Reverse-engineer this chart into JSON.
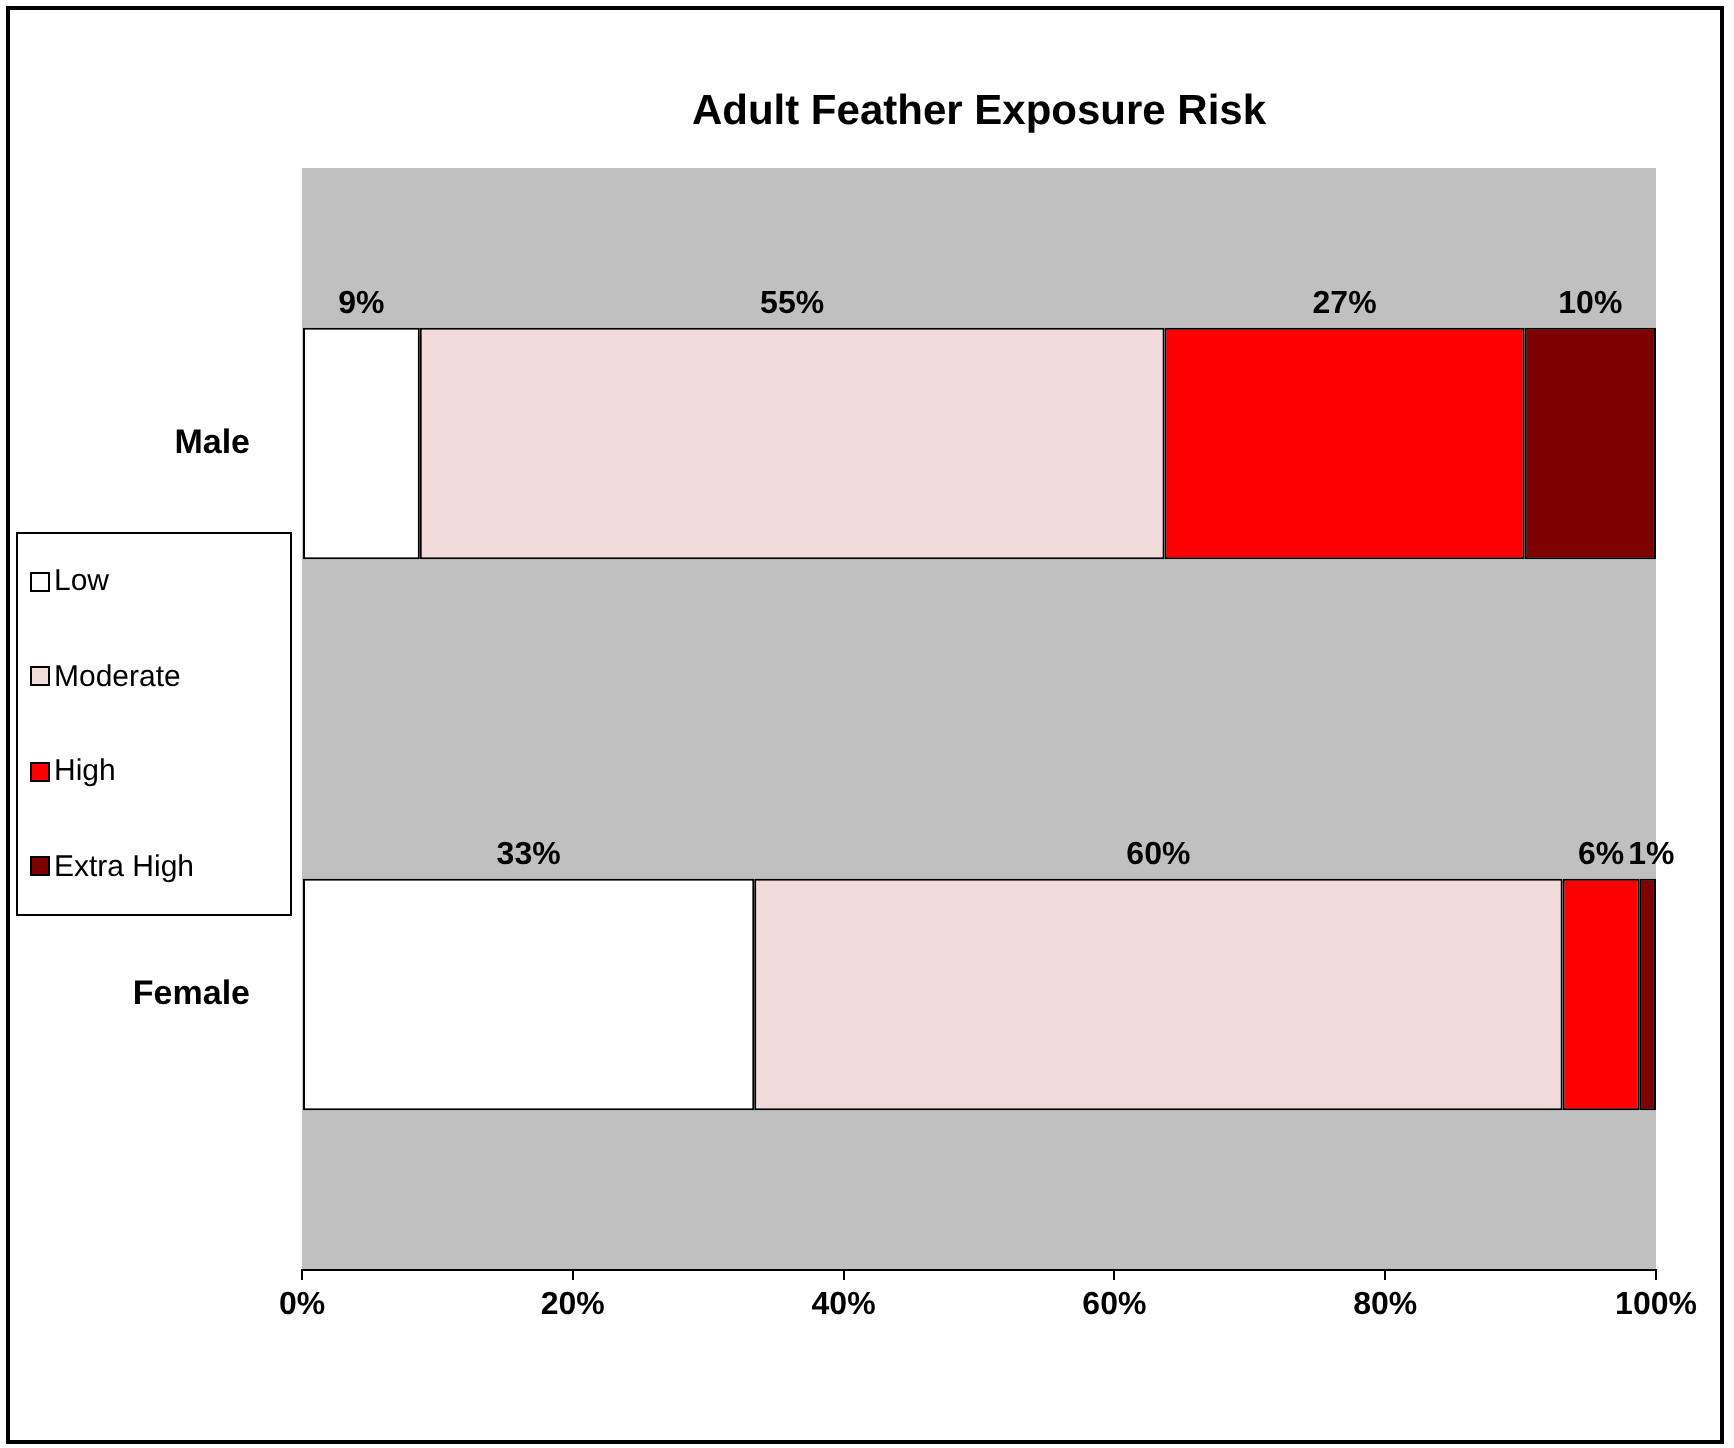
{
  "chart_data": {
    "type": "bar",
    "orientation": "horizontal",
    "stacked": true,
    "title": "Adult Feather Exposure Risk",
    "categories": [
      "Male",
      "Female"
    ],
    "series": [
      {
        "name": "Low",
        "color": "#ffffff",
        "values": [
          8.7,
          33.4
        ],
        "value_labels": [
          "9%",
          "33%"
        ]
      },
      {
        "name": "Moderate",
        "color": "#f2dcdb",
        "values": [
          55.0,
          59.7
        ],
        "value_labels": [
          "55%",
          "60%"
        ]
      },
      {
        "name": "High",
        "color": "#ff0000",
        "values": [
          26.6,
          5.7
        ],
        "value_labels": [
          "27%",
          "6%"
        ]
      },
      {
        "name": "Extra High",
        "color": "#7f0000",
        "values": [
          9.7,
          1.2
        ],
        "value_labels": [
          "10%",
          "1%"
        ]
      }
    ],
    "xlim": [
      0,
      100
    ],
    "xticks": [
      {
        "value": 0,
        "label": "0%"
      },
      {
        "value": 20,
        "label": "20%"
      },
      {
        "value": 40,
        "label": "40%"
      },
      {
        "value": 60,
        "label": "60%"
      },
      {
        "value": 80,
        "label": "80%"
      },
      {
        "value": 100,
        "label": "100%"
      }
    ],
    "grid": false,
    "legend": "left"
  }
}
